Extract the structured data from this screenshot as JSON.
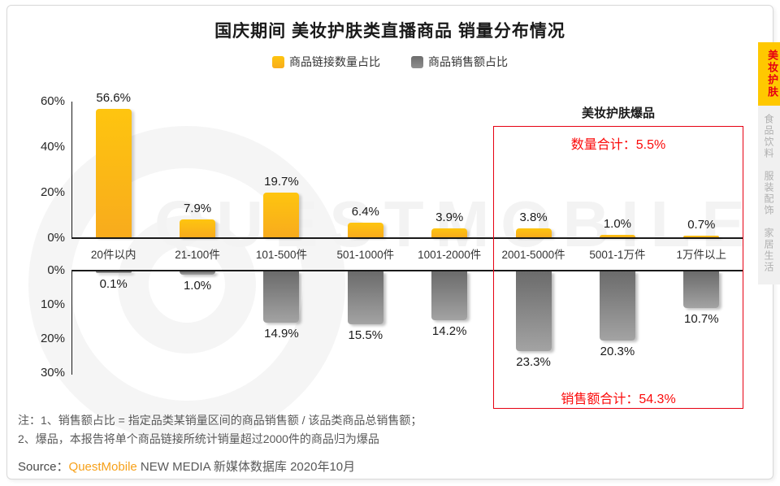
{
  "header": {
    "title": "国庆期间 美妆护肤类直播商品 销量分布情况"
  },
  "legend": {
    "count": "商品链接数量占比",
    "gmv": "商品销售额占比"
  },
  "sidebar": {
    "active": "美妆护肤",
    "items": [
      "食品饮料",
      "服装配饰",
      "家居生活"
    ]
  },
  "chart_data": {
    "type": "bar",
    "title": "国庆期间 美妆护肤类直播商品 销量分布情况",
    "categories": [
      "20件以内",
      "21-100件",
      "101-500件",
      "501-1000件",
      "1001-2000件",
      "2001-5000件",
      "5001-1万件",
      "1万件以上"
    ],
    "series": [
      {
        "name": "商品链接数量占比",
        "color": "#FBB415",
        "direction": "up",
        "values": [
          56.6,
          7.9,
          19.7,
          6.4,
          3.9,
          3.8,
          1.0,
          0.7
        ]
      },
      {
        "name": "商品销售额占比",
        "color": "#777777",
        "direction": "down",
        "values": [
          0.1,
          1.0,
          14.9,
          15.5,
          14.2,
          23.3,
          20.3,
          10.7
        ]
      }
    ],
    "value_labels": [
      [
        "56.6%",
        "7.9%",
        "19.7%",
        "6.4%",
        "3.9%",
        "3.8%",
        "1.0%",
        "0.7%"
      ],
      [
        "0.1%",
        "1.0%",
        "14.9%",
        "15.5%",
        "14.2%",
        "23.3%",
        "20.3%",
        "10.7%"
      ]
    ],
    "axis_top": {
      "ticks": [
        "60%",
        "40%",
        "20%",
        "0%"
      ],
      "max": 60
    },
    "axis_bottom": {
      "ticks": [
        "0%",
        "10%",
        "20%",
        "30%"
      ],
      "max": 30
    },
    "grid": false,
    "legend_position": "top"
  },
  "highlight": {
    "title": "美妆护肤爆品",
    "count_total": "数量合计：5.5%",
    "gmv_total": "销售额合计：54.3%",
    "covers_categories": [
      "2001-5000件",
      "5001-1万件",
      "1万件以上"
    ],
    "color": "#E60012"
  },
  "notes": [
    "注：1、销售额占比 = 指定品类某销量区间的商品销售额 / 该品类商品总销售额；",
    "2、爆品，本报告将单个商品链接所统计销量超过2000件的商品归为爆品"
  ],
  "source": {
    "prefix": "Source：",
    "brand": "QuestMobile",
    "suffix": " NEW MEDIA 新媒体数据库 2020年10月"
  },
  "watermark": "QUESTMOBILE",
  "colors": {
    "bar_yellow": "#FBB415",
    "bar_gray": "#777777",
    "highlight_red": "#E60012",
    "brand_orange": "#F7A11A",
    "tab_yellow": "#FFC800"
  }
}
